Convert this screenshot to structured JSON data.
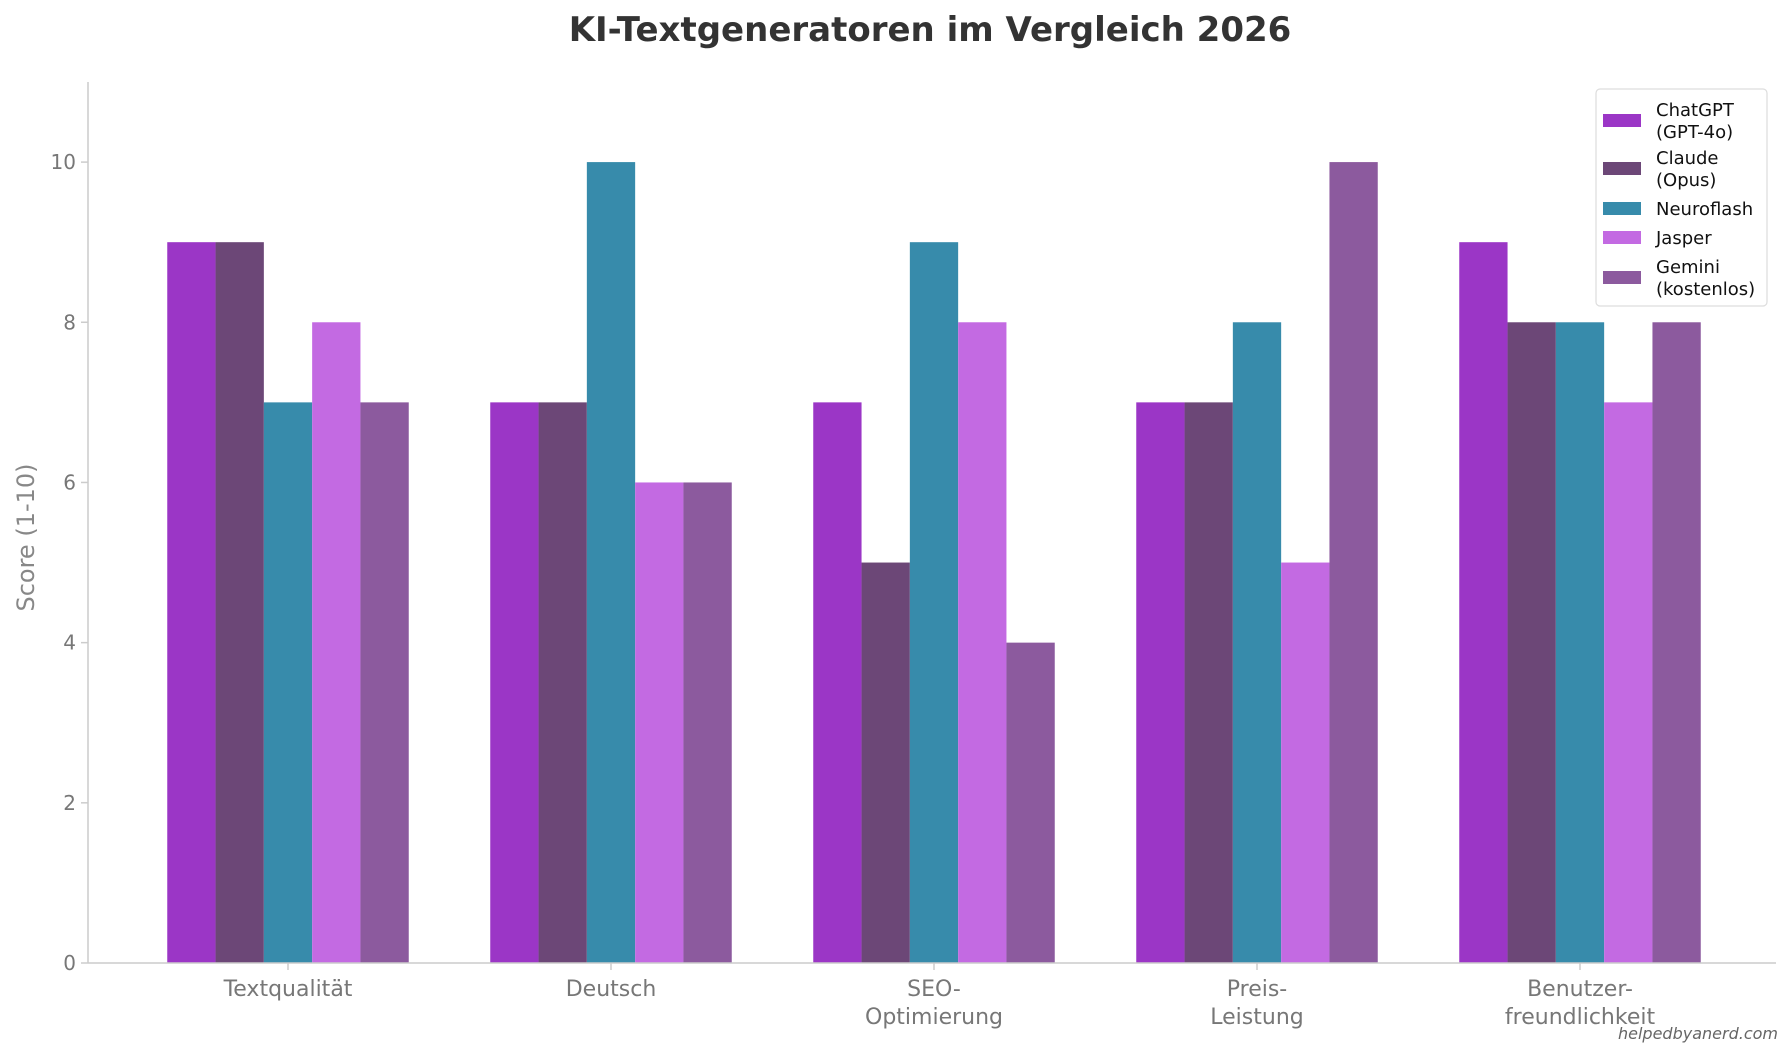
{
  "chart_data": {
    "type": "bar",
    "title": "KI-Textgeneratoren im Vergleich 2026",
    "ylabel": "Score (1-10)",
    "xlabel": "",
    "ylim": [
      0,
      11
    ],
    "yticks": [
      0,
      2,
      4,
      6,
      8,
      10
    ],
    "grid": false,
    "legend_position": "top-right",
    "categories": [
      [
        "Textqualität"
      ],
      [
        "Deutsch"
      ],
      [
        "SEO-",
        "Optimierung"
      ],
      [
        "Preis-",
        "Leistung"
      ],
      [
        "Benutzer-",
        "freundlichkeit"
      ]
    ],
    "series": [
      {
        "name": [
          "ChatGPT",
          "(GPT-4o)"
        ],
        "color": "#9b36c6",
        "values": [
          9,
          7,
          7,
          7,
          9
        ]
      },
      {
        "name": [
          "Claude",
          "(Opus)"
        ],
        "color": "#6c4777",
        "values": [
          9,
          7,
          5,
          7,
          8
        ]
      },
      {
        "name": [
          "Neuroflash"
        ],
        "color": "#378bab",
        "values": [
          7,
          10,
          9,
          8,
          8
        ]
      },
      {
        "name": [
          "Jasper"
        ],
        "color": "#c36ae2",
        "values": [
          8,
          6,
          8,
          5,
          7
        ]
      },
      {
        "name": [
          "Gemini",
          "(kostenlos)"
        ],
        "color": "#8c5a9e",
        "values": [
          7,
          6,
          4,
          10,
          8
        ]
      }
    ],
    "watermark": "helpedbyanerd.com"
  }
}
